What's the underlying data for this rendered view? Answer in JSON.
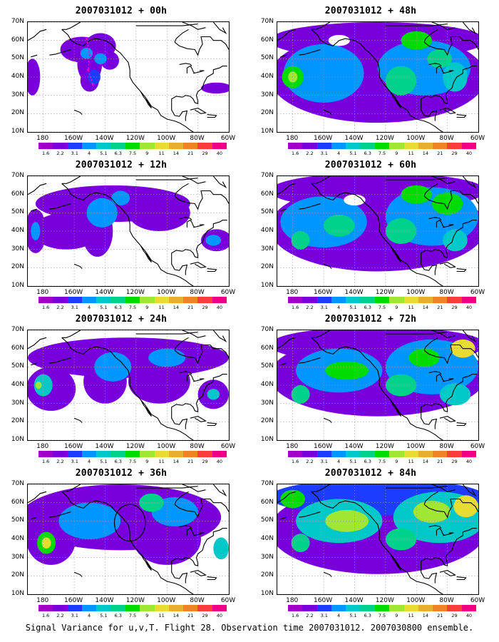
{
  "figure": {
    "caption": "Signal Variance for u,v,T. Flight 28. Observation time 2007031012. 2007030800 ensemble."
  },
  "axes": {
    "lat_labels": [
      "70N",
      "60N",
      "50N",
      "40N",
      "30N",
      "20N",
      "10N"
    ],
    "lat_values": [
      70,
      60,
      50,
      40,
      30,
      20,
      10
    ],
    "lon_labels": [
      "180",
      "160W",
      "140W",
      "120W",
      "100W",
      "80W",
      "60W"
    ],
    "lon_values": [
      -180,
      -160,
      -140,
      -120,
      -100,
      -80,
      -60
    ],
    "lon_range": [
      -190,
      -60
    ],
    "lat_range": [
      10,
      70
    ]
  },
  "colorbar": {
    "labels": [
      "1.6",
      "2.2",
      "3.1",
      "4",
      "5.1",
      "6.3",
      "7.5",
      "9",
      "11",
      "14",
      "21",
      "29",
      "40"
    ],
    "colors": [
      "#a000c8",
      "#7800dc",
      "#1e3cff",
      "#0096ff",
      "#00c8c8",
      "#00d28c",
      "#00dc00",
      "#a0e632",
      "#e6dc32",
      "#e6af2d",
      "#f08228",
      "#fa3c3c",
      "#f00082"
    ]
  },
  "panels": [
    {
      "title": "2007031012 + 00h",
      "level": 0,
      "blobs": [
        {
          "lon": -155,
          "lat": 55,
          "rx": 14,
          "ry": 7,
          "v": 1
        },
        {
          "lon": -143,
          "lat": 57,
          "rx": 10,
          "ry": 7,
          "v": 1
        },
        {
          "lon": -150,
          "lat": 47,
          "rx": 8,
          "ry": 10,
          "v": 1
        },
        {
          "lon": -150,
          "lat": 38,
          "rx": 6,
          "ry": 6,
          "v": 1
        },
        {
          "lon": -137,
          "lat": 49,
          "rx": 6,
          "ry": 5,
          "v": 1
        },
        {
          "lon": -147,
          "lat": 40,
          "rx": 4,
          "ry": 4,
          "v": 2
        },
        {
          "lon": -143,
          "lat": 50,
          "rx": 4,
          "ry": 3,
          "v": 3
        },
        {
          "lon": -152,
          "lat": 53,
          "rx": 4,
          "ry": 3,
          "v": 3
        },
        {
          "lon": -187,
          "lat": 40,
          "rx": 5,
          "ry": 10,
          "v": 1
        },
        {
          "lon": -68,
          "lat": 34,
          "rx": 10,
          "ry": 3,
          "v": 1
        }
      ],
      "track": {
        "color": "#ff00cc",
        "points": [
          [
            -152,
            61
          ],
          [
            -150,
            52
          ],
          [
            -151,
            44
          ],
          [
            -148,
            36
          ]
        ]
      },
      "circle": null
    },
    {
      "title": "2007031012 + 48h",
      "level": 3,
      "blobs": [
        {
          "lon": -125,
          "lat": 40,
          "rx": 70,
          "ry": 25,
          "v": 1
        },
        {
          "lon": -125,
          "lat": 60,
          "rx": 70,
          "ry": 10,
          "v": 1
        },
        {
          "lon": -160,
          "lat": 42,
          "rx": 26,
          "ry": 16,
          "v": 3
        },
        {
          "lon": -95,
          "lat": 45,
          "rx": 30,
          "ry": 15,
          "v": 3
        },
        {
          "lon": -180,
          "lat": 40,
          "rx": 7,
          "ry": 6,
          "v": 6
        },
        {
          "lon": -180,
          "lat": 40,
          "rx": 3,
          "ry": 3,
          "v": 7
        },
        {
          "lon": -110,
          "lat": 38,
          "rx": 10,
          "ry": 8,
          "v": 5
        },
        {
          "lon": -100,
          "lat": 60,
          "rx": 10,
          "ry": 5,
          "v": 6
        },
        {
          "lon": -85,
          "lat": 50,
          "rx": 8,
          "ry": 5,
          "v": 5
        },
        {
          "lon": -75,
          "lat": 40,
          "rx": 8,
          "ry": 8,
          "v": 4
        }
      ],
      "holes": [
        {
          "lon": -150,
          "lat": 60,
          "rx": 7,
          "ry": 3
        }
      ],
      "track": null,
      "circle": null
    },
    {
      "title": "2007031012 + 12h",
      "level": 1,
      "blobs": [
        {
          "lon": -135,
          "lat": 55,
          "rx": 50,
          "ry": 10,
          "v": 1
        },
        {
          "lon": -165,
          "lat": 40,
          "rx": 22,
          "ry": 10,
          "v": 1
        },
        {
          "lon": -145,
          "lat": 40,
          "rx": 10,
          "ry": 14,
          "v": 1
        },
        {
          "lon": -105,
          "lat": 50,
          "rx": 20,
          "ry": 10,
          "v": 1
        },
        {
          "lon": -185,
          "lat": 40,
          "rx": 7,
          "ry": 12,
          "v": 1
        },
        {
          "lon": -68,
          "lat": 35,
          "rx": 10,
          "ry": 6,
          "v": 1
        },
        {
          "lon": -142,
          "lat": 50,
          "rx": 10,
          "ry": 8,
          "v": 3
        },
        {
          "lon": -130,
          "lat": 58,
          "rx": 6,
          "ry": 4,
          "v": 3
        },
        {
          "lon": -185,
          "lat": 40,
          "rx": 3,
          "ry": 5,
          "v": 3
        },
        {
          "lon": -70,
          "lat": 35,
          "rx": 5,
          "ry": 3,
          "v": 3
        }
      ],
      "track": null,
      "circle": null
    },
    {
      "title": "2007031012 + 60h",
      "level": 3,
      "blobs": [
        {
          "lon": -125,
          "lat": 42,
          "rx": 70,
          "ry": 24,
          "v": 1
        },
        {
          "lon": -125,
          "lat": 62,
          "rx": 70,
          "ry": 10,
          "v": 1
        },
        {
          "lon": -160,
          "lat": 45,
          "rx": 28,
          "ry": 14,
          "v": 3
        },
        {
          "lon": -90,
          "lat": 48,
          "rx": 30,
          "ry": 16,
          "v": 3
        },
        {
          "lon": -150,
          "lat": 43,
          "rx": 10,
          "ry": 6,
          "v": 5
        },
        {
          "lon": -110,
          "lat": 40,
          "rx": 10,
          "ry": 7,
          "v": 5
        },
        {
          "lon": -100,
          "lat": 60,
          "rx": 10,
          "ry": 5,
          "v": 6
        },
        {
          "lon": -80,
          "lat": 55,
          "rx": 10,
          "ry": 6,
          "v": 6
        },
        {
          "lon": -175,
          "lat": 35,
          "rx": 6,
          "ry": 5,
          "v": 5
        },
        {
          "lon": -75,
          "lat": 35,
          "rx": 8,
          "ry": 6,
          "v": 4
        }
      ],
      "holes": [
        {
          "lon": -140,
          "lat": 57,
          "rx": 7,
          "ry": 3
        }
      ],
      "track": null,
      "circle": null
    },
    {
      "title": "2007031012 + 24h",
      "level": 2,
      "blobs": [
        {
          "lon": -125,
          "lat": 55,
          "rx": 65,
          "ry": 11,
          "v": 1
        },
        {
          "lon": -175,
          "lat": 38,
          "rx": 16,
          "ry": 12,
          "v": 1
        },
        {
          "lon": -140,
          "lat": 42,
          "rx": 14,
          "ry": 12,
          "v": 1
        },
        {
          "lon": -105,
          "lat": 42,
          "rx": 20,
          "ry": 12,
          "v": 1
        },
        {
          "lon": -70,
          "lat": 35,
          "rx": 10,
          "ry": 8,
          "v": 1
        },
        {
          "lon": -135,
          "lat": 50,
          "rx": 12,
          "ry": 8,
          "v": 3
        },
        {
          "lon": -100,
          "lat": 55,
          "rx": 12,
          "ry": 5,
          "v": 3
        },
        {
          "lon": -180,
          "lat": 40,
          "rx": 6,
          "ry": 6,
          "v": 4
        },
        {
          "lon": -183,
          "lat": 40,
          "rx": 2,
          "ry": 2,
          "v": 7
        },
        {
          "lon": -70,
          "lat": 35,
          "rx": 4,
          "ry": 3,
          "v": 4
        }
      ],
      "holes": [],
      "track": null,
      "circle": null
    },
    {
      "title": "2007031012 + 72h",
      "level": 3,
      "blobs": [
        {
          "lon": -125,
          "lat": 45,
          "rx": 70,
          "ry": 22,
          "v": 1
        },
        {
          "lon": -125,
          "lat": 62,
          "rx": 70,
          "ry": 10,
          "v": 1
        },
        {
          "lon": -150,
          "lat": 48,
          "rx": 28,
          "ry": 12,
          "v": 3
        },
        {
          "lon": -90,
          "lat": 50,
          "rx": 30,
          "ry": 15,
          "v": 3
        },
        {
          "lon": -145,
          "lat": 48,
          "rx": 14,
          "ry": 5,
          "v": 6
        },
        {
          "lon": -95,
          "lat": 55,
          "rx": 10,
          "ry": 5,
          "v": 6
        },
        {
          "lon": -70,
          "lat": 60,
          "rx": 8,
          "ry": 5,
          "v": 8
        },
        {
          "lon": -175,
          "lat": 35,
          "rx": 6,
          "ry": 5,
          "v": 5
        },
        {
          "lon": -110,
          "lat": 40,
          "rx": 10,
          "ry": 6,
          "v": 5
        },
        {
          "lon": -75,
          "lat": 35,
          "rx": 10,
          "ry": 6,
          "v": 4
        }
      ],
      "holes": [],
      "track": null,
      "circle": null
    },
    {
      "title": "2007031012 + 36h",
      "level": 2,
      "blobs": [
        {
          "lon": -130,
          "lat": 52,
          "rx": 65,
          "ry": 18,
          "v": 1
        },
        {
          "lon": -175,
          "lat": 40,
          "rx": 16,
          "ry": 14,
          "v": 1
        },
        {
          "lon": -100,
          "lat": 40,
          "rx": 22,
          "ry": 14,
          "v": 1
        },
        {
          "lon": -150,
          "lat": 50,
          "rx": 20,
          "ry": 10,
          "v": 3
        },
        {
          "lon": -95,
          "lat": 55,
          "rx": 15,
          "ry": 8,
          "v": 3
        },
        {
          "lon": -178,
          "lat": 38,
          "rx": 6,
          "ry": 6,
          "v": 6
        },
        {
          "lon": -178,
          "lat": 38,
          "rx": 3,
          "ry": 3,
          "v": 8
        },
        {
          "lon": -110,
          "lat": 60,
          "rx": 8,
          "ry": 5,
          "v": 5
        },
        {
          "lon": -65,
          "lat": 35,
          "rx": 5,
          "ry": 6,
          "v": 4
        }
      ],
      "holes": [],
      "track": null,
      "circle": {
        "lon": -124,
        "lat": 49,
        "rx": 10,
        "ry": 10
      }
    },
    {
      "title": "2007031012 + 84h",
      "level": 4,
      "blobs": [
        {
          "lon": -125,
          "lat": 45,
          "rx": 70,
          "ry": 24,
          "v": 1
        },
        {
          "lon": -125,
          "lat": 63,
          "rx": 70,
          "ry": 10,
          "v": 2
        },
        {
          "lon": -150,
          "lat": 50,
          "rx": 28,
          "ry": 12,
          "v": 4
        },
        {
          "lon": -85,
          "lat": 52,
          "rx": 30,
          "ry": 14,
          "v": 4
        },
        {
          "lon": -145,
          "lat": 50,
          "rx": 14,
          "ry": 6,
          "v": 7
        },
        {
          "lon": -90,
          "lat": 55,
          "rx": 12,
          "ry": 6,
          "v": 7
        },
        {
          "lon": -68,
          "lat": 58,
          "rx": 8,
          "ry": 6,
          "v": 8
        },
        {
          "lon": -180,
          "lat": 62,
          "rx": 8,
          "ry": 5,
          "v": 6
        },
        {
          "lon": -175,
          "lat": 38,
          "rx": 6,
          "ry": 5,
          "v": 5
        },
        {
          "lon": -110,
          "lat": 40,
          "rx": 10,
          "ry": 6,
          "v": 5
        }
      ],
      "holes": [],
      "track": null,
      "circle": null
    }
  ]
}
